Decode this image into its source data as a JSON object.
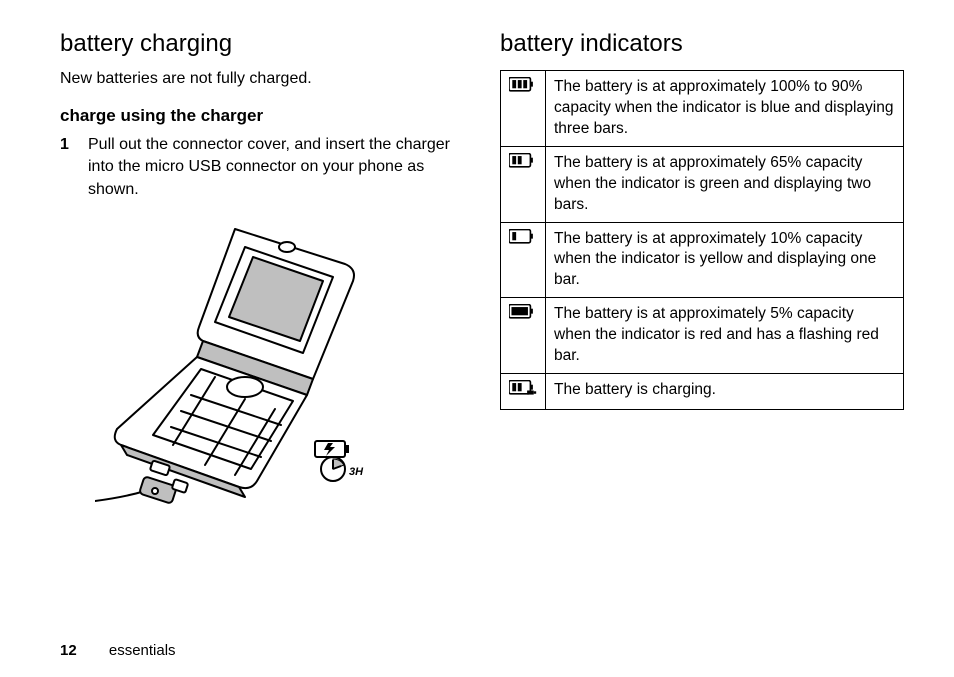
{
  "left": {
    "heading": "battery charging",
    "intro": "New batteries are not fully charged.",
    "sub_heading": "charge using the charger",
    "step_num": "1",
    "step_text": "Pull out the connector cover, and insert the charger into the micro USB connector on your phone as shown.",
    "illustration": {
      "charge_time_label": "3H",
      "stroke": "#000000",
      "fill_light": "#ffffff",
      "fill_shade": "#bfbfbf"
    }
  },
  "right": {
    "heading": "battery indicators",
    "table": {
      "border_color": "#000000",
      "rows": [
        {
          "icon": {
            "bars": 3,
            "fill": "#000000",
            "outline": "#000000",
            "cap_fill": "#000000",
            "flash": false
          },
          "text": "The battery is at approximately 100% to 90% capacity when the indicator is blue and displaying three bars."
        },
        {
          "icon": {
            "bars": 2,
            "fill": "#000000",
            "outline": "#000000",
            "cap_fill": "#000000",
            "flash": false
          },
          "text": "The battery is at approximately 65% capacity when the indicator is green and displaying two bars."
        },
        {
          "icon": {
            "bars": 1,
            "fill": "#000000",
            "outline": "#000000",
            "cap_fill": "#000000",
            "flash": false
          },
          "text": "The battery is at approximately 10% capacity when the indicator is yellow and displaying one bar."
        },
        {
          "icon": {
            "bars": 1,
            "fill": "#000000",
            "outline": "#000000",
            "cap_fill": "#000000",
            "flash": true,
            "solid": true
          },
          "text": "The battery is at approximately 5% capacity when the indicator is red and has a flashing red bar."
        },
        {
          "icon": {
            "bars": 2,
            "fill": "#000000",
            "outline": "#000000",
            "cap_fill": "#000000",
            "charging": true
          },
          "text": "The battery is charging."
        }
      ]
    }
  },
  "footer": {
    "page_number": "12",
    "section": "essentials"
  }
}
